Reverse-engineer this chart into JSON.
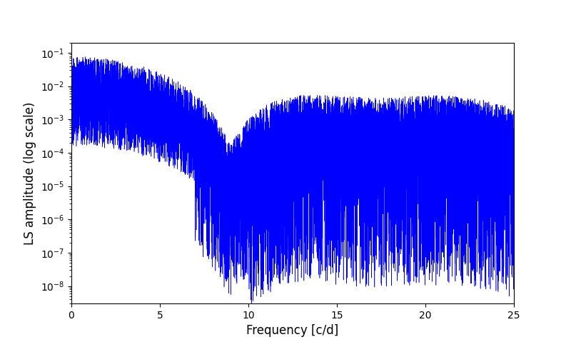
{
  "title": "",
  "xlabel": "Frequency [c/d]",
  "ylabel": "LS amplitude (log scale)",
  "line_color": "#0000ff",
  "xlim": [
    0,
    25
  ],
  "ylim": [
    3e-09,
    0.2
  ],
  "yticks": [
    1e-08,
    1e-07,
    1e-06,
    1e-05,
    0.0001,
    0.001,
    0.01,
    0.1
  ],
  "xticks": [
    0,
    5,
    10,
    15,
    20,
    25
  ],
  "figsize": [
    8.0,
    5.0
  ],
  "dpi": 100,
  "n_frequencies": 5000,
  "freq_max": 25.0,
  "seed": 7
}
